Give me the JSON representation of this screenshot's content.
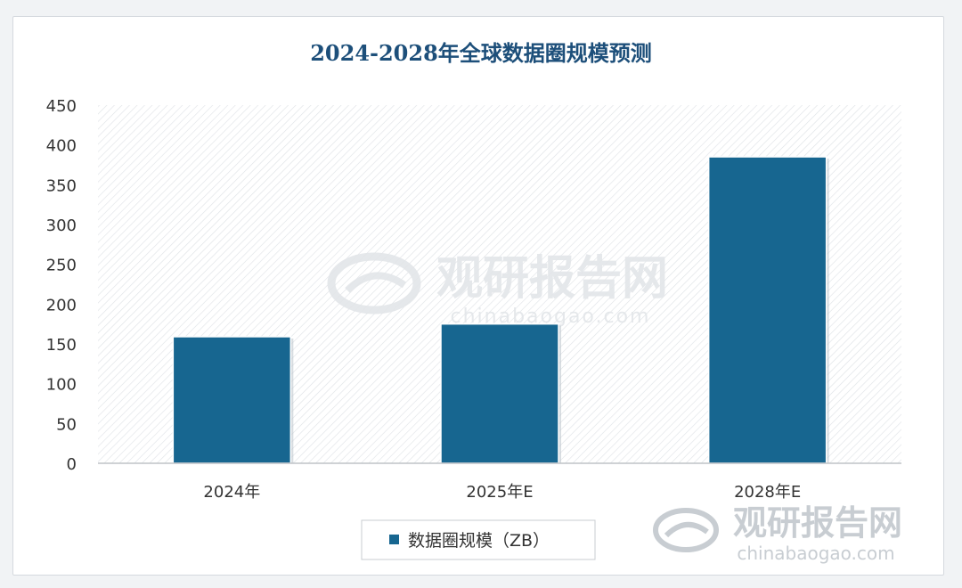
{
  "colors": {
    "bar": "#176690",
    "title": "#1d4f7a",
    "axis_text": "#333333",
    "plot_hatch": "#dde1e5",
    "watermark": "#e3e6e9"
  },
  "watermark": {
    "brand": "观研报告网",
    "url": "chinabaogao.com",
    "icon": "chinabaogao-logo-icon"
  },
  "chart_data": {
    "type": "bar",
    "title": "2024-2028年全球数据圈规模预测",
    "categories": [
      "2024年",
      "2025年E",
      "2028年E"
    ],
    "series": [
      {
        "name": "数据圈规模（ZB）",
        "values": [
          159,
          175,
          385
        ]
      }
    ],
    "ylim": [
      0,
      450
    ],
    "yticks": [
      0,
      50,
      100,
      150,
      200,
      250,
      300,
      350,
      400,
      450
    ],
    "grid": false,
    "legend": "bottom"
  }
}
